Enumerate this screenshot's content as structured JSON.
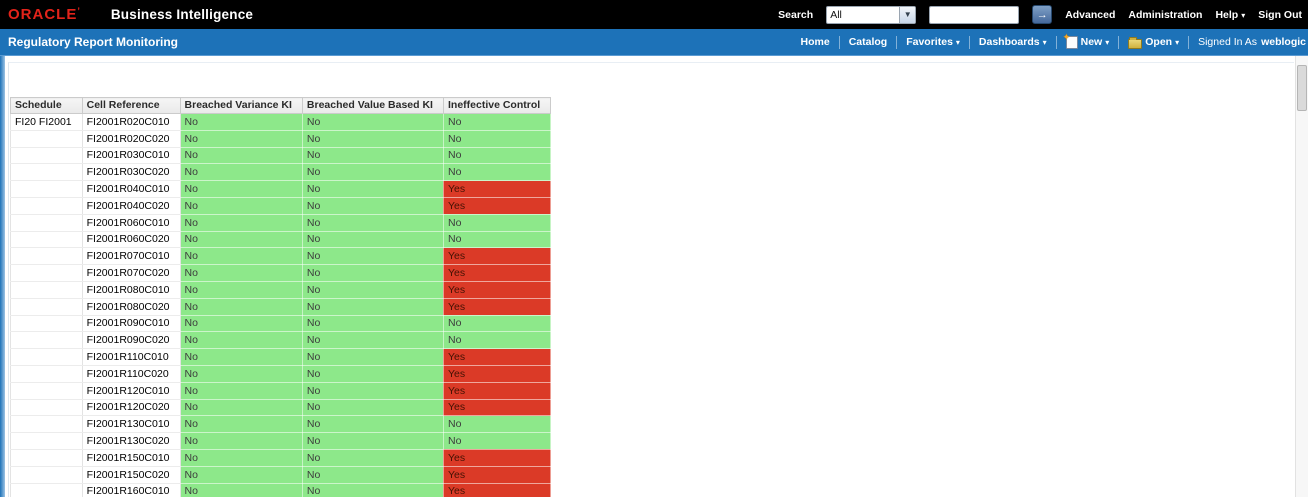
{
  "brand": {
    "logo": "ORACLE",
    "logo_mark": "’",
    "product": "Business Intelligence"
  },
  "topbar": {
    "search": {
      "label": "Search",
      "scope_selected": "All",
      "input_value": ""
    },
    "links": [
      {
        "label": "Advanced"
      },
      {
        "label": "Administration"
      },
      {
        "label": "Help"
      },
      {
        "label": "Sign Out"
      }
    ]
  },
  "pagebar": {
    "title": "Regulatory Report Monitoring",
    "nav": [
      {
        "label": "Home"
      },
      {
        "label": "Catalog"
      },
      {
        "label": "Favorites"
      },
      {
        "label": "Dashboards"
      }
    ],
    "actions": [
      {
        "label": "New",
        "icon": "new-document-icon"
      },
      {
        "label": "Open",
        "icon": "open-folder-icon"
      }
    ],
    "signed_in_label": "Signed In As",
    "username": "weblogic"
  },
  "icons": {
    "chevron_down": "▾",
    "go_arrow": "→",
    "new_star": "✦"
  },
  "colors": {
    "bar_blue": "#1d72b8",
    "brand_red": "#e2231a",
    "status_no_bg": "#8de88a",
    "status_yes_bg": "#db3a27"
  },
  "report_table": {
    "columns": [
      "Schedule",
      "Cell Reference",
      "Breached Variance KI",
      "Breached Value Based KI",
      "Ineffective Control"
    ],
    "rows": [
      {
        "schedule": "FI20 FI2001",
        "cell_reference": "FI2001R020C010",
        "breached_variance_ki": "No",
        "breached_value_based_ki": "No",
        "ineffective_control": "No"
      },
      {
        "schedule": "",
        "cell_reference": "FI2001R020C020",
        "breached_variance_ki": "No",
        "breached_value_based_ki": "No",
        "ineffective_control": "No"
      },
      {
        "schedule": "",
        "cell_reference": "FI2001R030C010",
        "breached_variance_ki": "No",
        "breached_value_based_ki": "No",
        "ineffective_control": "No"
      },
      {
        "schedule": "",
        "cell_reference": "FI2001R030C020",
        "breached_variance_ki": "No",
        "breached_value_based_ki": "No",
        "ineffective_control": "No"
      },
      {
        "schedule": "",
        "cell_reference": "FI2001R040C010",
        "breached_variance_ki": "No",
        "breached_value_based_ki": "No",
        "ineffective_control": "Yes"
      },
      {
        "schedule": "",
        "cell_reference": "FI2001R040C020",
        "breached_variance_ki": "No",
        "breached_value_based_ki": "No",
        "ineffective_control": "Yes"
      },
      {
        "schedule": "",
        "cell_reference": "FI2001R060C010",
        "breached_variance_ki": "No",
        "breached_value_based_ki": "No",
        "ineffective_control": "No"
      },
      {
        "schedule": "",
        "cell_reference": "FI2001R060C020",
        "breached_variance_ki": "No",
        "breached_value_based_ki": "No",
        "ineffective_control": "No"
      },
      {
        "schedule": "",
        "cell_reference": "FI2001R070C010",
        "breached_variance_ki": "No",
        "breached_value_based_ki": "No",
        "ineffective_control": "Yes"
      },
      {
        "schedule": "",
        "cell_reference": "FI2001R070C020",
        "breached_variance_ki": "No",
        "breached_value_based_ki": "No",
        "ineffective_control": "Yes"
      },
      {
        "schedule": "",
        "cell_reference": "FI2001R080C010",
        "breached_variance_ki": "No",
        "breached_value_based_ki": "No",
        "ineffective_control": "Yes"
      },
      {
        "schedule": "",
        "cell_reference": "FI2001R080C020",
        "breached_variance_ki": "No",
        "breached_value_based_ki": "No",
        "ineffective_control": "Yes"
      },
      {
        "schedule": "",
        "cell_reference": "FI2001R090C010",
        "breached_variance_ki": "No",
        "breached_value_based_ki": "No",
        "ineffective_control": "No"
      },
      {
        "schedule": "",
        "cell_reference": "FI2001R090C020",
        "breached_variance_ki": "No",
        "breached_value_based_ki": "No",
        "ineffective_control": "No"
      },
      {
        "schedule": "",
        "cell_reference": "FI2001R110C010",
        "breached_variance_ki": "No",
        "breached_value_based_ki": "No",
        "ineffective_control": "Yes"
      },
      {
        "schedule": "",
        "cell_reference": "FI2001R110C020",
        "breached_variance_ki": "No",
        "breached_value_based_ki": "No",
        "ineffective_control": "Yes"
      },
      {
        "schedule": "",
        "cell_reference": "FI2001R120C010",
        "breached_variance_ki": "No",
        "breached_value_based_ki": "No",
        "ineffective_control": "Yes"
      },
      {
        "schedule": "",
        "cell_reference": "FI2001R120C020",
        "breached_variance_ki": "No",
        "breached_value_based_ki": "No",
        "ineffective_control": "Yes"
      },
      {
        "schedule": "",
        "cell_reference": "FI2001R130C010",
        "breached_variance_ki": "No",
        "breached_value_based_ki": "No",
        "ineffective_control": "No"
      },
      {
        "schedule": "",
        "cell_reference": "FI2001R130C020",
        "breached_variance_ki": "No",
        "breached_value_based_ki": "No",
        "ineffective_control": "No"
      },
      {
        "schedule": "",
        "cell_reference": "FI2001R150C010",
        "breached_variance_ki": "No",
        "breached_value_based_ki": "No",
        "ineffective_control": "Yes"
      },
      {
        "schedule": "",
        "cell_reference": "FI2001R150C020",
        "breached_variance_ki": "No",
        "breached_value_based_ki": "No",
        "ineffective_control": "Yes"
      },
      {
        "schedule": "",
        "cell_reference": "FI2001R160C010",
        "breached_variance_ki": "No",
        "breached_value_based_ki": "No",
        "ineffective_control": "Yes"
      }
    ]
  }
}
